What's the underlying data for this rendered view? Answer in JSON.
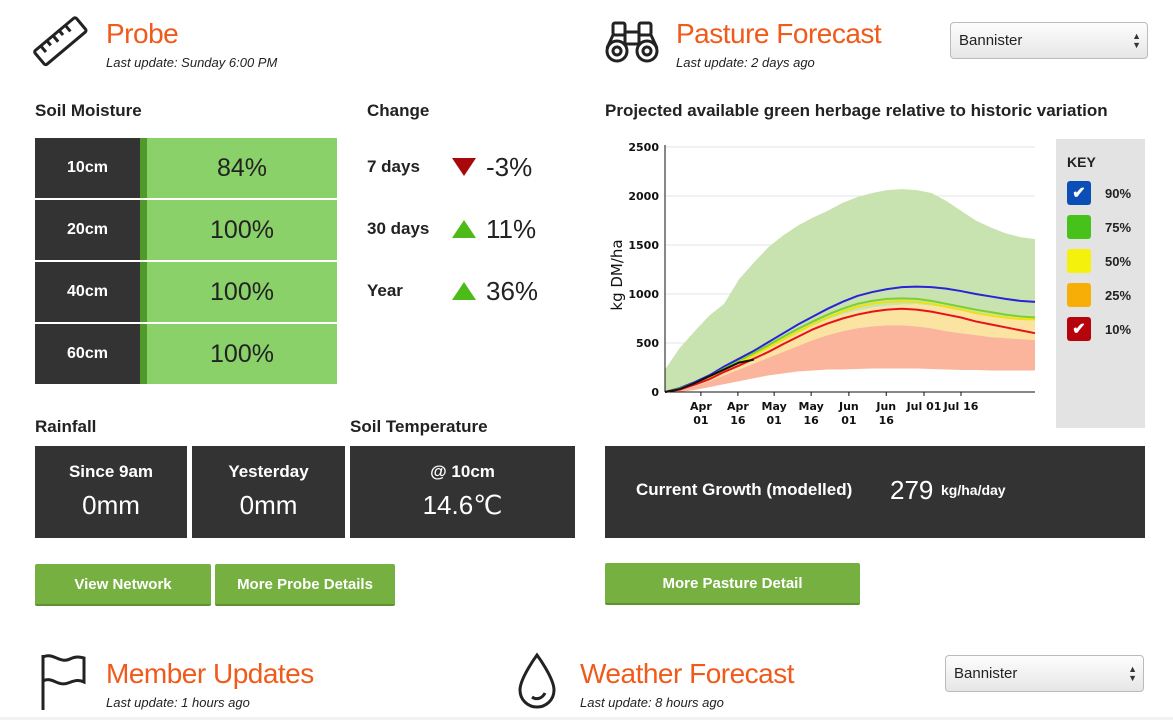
{
  "probe": {
    "title": "Probe",
    "last_update": "Last update: Sunday 6:00 PM",
    "soil_moisture_label": "Soil Moisture",
    "change_label": "Change",
    "moisture": [
      {
        "depth": "10cm",
        "value": "84%"
      },
      {
        "depth": "20cm",
        "value": "100%"
      },
      {
        "depth": "40cm",
        "value": "100%"
      },
      {
        "depth": "60cm",
        "value": "100%"
      }
    ],
    "changes": [
      {
        "label": "7 days",
        "direction": "down",
        "value": "-3%"
      },
      {
        "label": "30 days",
        "direction": "up",
        "value": "11%"
      },
      {
        "label": "Year",
        "direction": "up",
        "value": "36%"
      }
    ],
    "rainfall_label": "Rainfall",
    "rainfall": [
      {
        "label": "Since 9am",
        "value": "0mm"
      },
      {
        "label": "Yesterday",
        "value": "0mm"
      }
    ],
    "soil_temp_label": "Soil Temperature",
    "soil_temp": {
      "label": "@ 10cm",
      "value": "14.6℃"
    },
    "buttons": {
      "view_network": "View Network",
      "more_probe": "More Probe Details"
    }
  },
  "pasture": {
    "title": "Pasture Forecast",
    "last_update": "Last update: 2 days ago",
    "location_select": "Bannister",
    "chart_heading": "Projected available green herbage relative to historic variation",
    "key_title": "KEY",
    "growth_label": "Current Growth (modelled)",
    "growth_value": "279",
    "growth_unit": "kg/ha/day",
    "more_button": "More Pasture Detail"
  },
  "member_updates": {
    "title": "Member Updates",
    "last_update": "Last update: 1 hours ago"
  },
  "weather": {
    "title": "Weather Forecast",
    "last_update": "Last update: 8 hours ago",
    "location_select": "Bannister"
  },
  "colors": {
    "accent": "#f05a1a",
    "dark_panel": "#333333",
    "green_button": "#76b041",
    "moisture_fill": "#8ad16a"
  },
  "chart_data": {
    "type": "area",
    "ylabel": "kg DM/ha",
    "ylim": [
      0,
      2500
    ],
    "yticks": [
      "0",
      "500",
      "1000",
      "1500",
      "2000",
      "2500"
    ],
    "x_ticks": [
      {
        "line1": "Apr",
        "line2": "01"
      },
      {
        "line1": "Apr",
        "line2": "16"
      },
      {
        "line1": "May",
        "line2": "01"
      },
      {
        "line1": "May",
        "line2": "16"
      },
      {
        "line1": "Jun",
        "line2": "01"
      },
      {
        "line1": "Jun",
        "line2": "16"
      },
      {
        "line1": "Jul 01",
        "line2": ""
      },
      {
        "line1": "Jul 16",
        "line2": ""
      }
    ],
    "x_tick_pos": [
      0.097,
      0.197,
      0.295,
      0.395,
      0.497,
      0.598,
      0.7,
      0.8
    ],
    "key": [
      {
        "label": "90%",
        "color": "#0b4eb5",
        "checked": true
      },
      {
        "label": "75%",
        "color": "#47c21a",
        "checked": false
      },
      {
        "label": "50%",
        "color": "#f4f20c",
        "checked": false
      },
      {
        "label": "25%",
        "color": "#f7ae06",
        "checked": false
      },
      {
        "label": "10%",
        "color": "#b5040c",
        "checked": true
      }
    ],
    "bands": {
      "x": [
        0,
        0.04,
        0.08,
        0.12,
        0.16,
        0.2,
        0.24,
        0.28,
        0.32,
        0.36,
        0.4,
        0.44,
        0.48,
        0.52,
        0.56,
        0.6,
        0.64,
        0.68,
        0.72,
        0.76,
        0.8,
        0.84,
        0.88,
        0.92,
        0.96,
        1.0
      ],
      "max": [
        230,
        450,
        620,
        780,
        900,
        1150,
        1320,
        1480,
        1600,
        1700,
        1780,
        1850,
        1930,
        1990,
        2030,
        2060,
        2070,
        2060,
        2030,
        1950,
        1850,
        1750,
        1680,
        1620,
        1580,
        1560
      ],
      "p75": [
        0,
        30,
        80,
        140,
        210,
        290,
        370,
        450,
        530,
        610,
        680,
        740,
        790,
        830,
        860,
        880,
        890,
        895,
        880,
        860,
        840,
        810,
        790,
        770,
        760,
        750
      ],
      "p25": [
        0,
        20,
        60,
        110,
        170,
        230,
        290,
        350,
        410,
        470,
        530,
        580,
        620,
        650,
        670,
        680,
        680,
        670,
        650,
        620,
        600,
        580,
        560,
        550,
        540,
        530
      ],
      "min": [
        0,
        0,
        20,
        50,
        80,
        110,
        140,
        170,
        190,
        210,
        220,
        230,
        230,
        235,
        240,
        240,
        240,
        240,
        235,
        230,
        225,
        225,
        220,
        220,
        220,
        220
      ]
    },
    "lines": [
      {
        "name": "90%",
        "color": "#2a24d6",
        "values": [
          0,
          40,
          100,
          170,
          260,
          340,
          420,
          510,
          600,
          690,
          770,
          850,
          920,
          980,
          1020,
          1050,
          1070,
          1075,
          1070,
          1055,
          1030,
          1000,
          975,
          950,
          930,
          920
        ]
      },
      {
        "name": "75%",
        "color": "#7bd12a",
        "values": [
          0,
          35,
          90,
          155,
          240,
          315,
          395,
          480,
          565,
          645,
          720,
          790,
          850,
          900,
          930,
          950,
          955,
          950,
          930,
          900,
          870,
          840,
          815,
          790,
          770,
          760
        ]
      },
      {
        "name": "50%",
        "color": "#efe20c",
        "values": [
          0,
          30,
          85,
          145,
          225,
          300,
          375,
          455,
          535,
          615,
          690,
          760,
          820,
          870,
          900,
          920,
          925,
          920,
          900,
          870,
          840,
          805,
          780,
          760,
          745,
          740
        ]
      },
      {
        "name": "10%",
        "color": "#e8101a",
        "values": [
          0,
          25,
          75,
          130,
          205,
          270,
          340,
          410,
          490,
          565,
          640,
          700,
          750,
          790,
          820,
          840,
          850,
          840,
          820,
          790,
          760,
          720,
          690,
          660,
          630,
          600
        ]
      },
      {
        "name": "current",
        "color": "#111111",
        "values": [
          0,
          30,
          90,
          160,
          230,
          300,
          330
        ]
      }
    ]
  }
}
